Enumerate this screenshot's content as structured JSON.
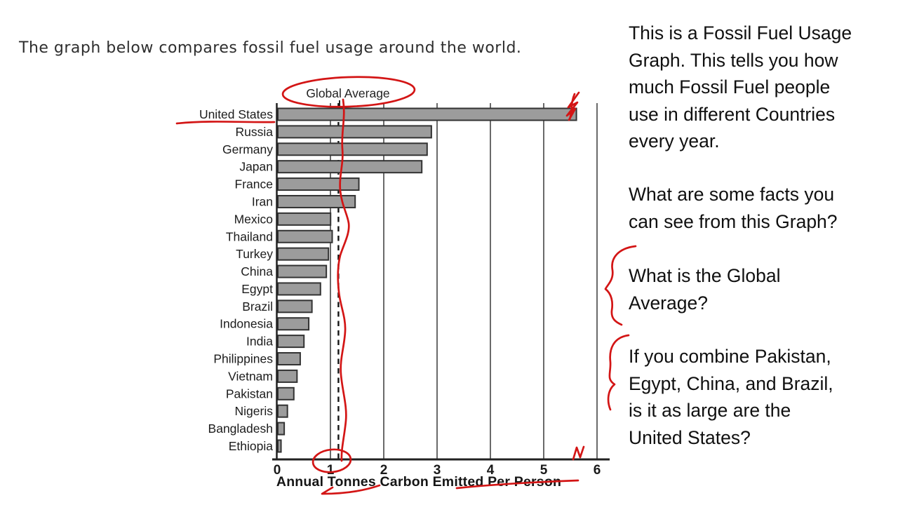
{
  "chart_data": {
    "type": "bar",
    "orientation": "horizontal",
    "title": "The graph below compares fossil fuel usage around the world.",
    "xlabel": "Annual Tonnes Carbon Emitted Per Person",
    "xlim": [
      0,
      6
    ],
    "xticks": [
      0,
      1,
      2,
      3,
      4,
      5,
      6
    ],
    "grid": true,
    "legend": "none",
    "bar_color": "#9c9c9c",
    "bar_border_color": "#333333",
    "categories": [
      "United States",
      "Russia",
      "Germany",
      "Japan",
      "France",
      "Iran",
      "Mexico",
      "Thailand",
      "Turkey",
      "China",
      "Egypt",
      "Brazil",
      "Indonesia",
      "India",
      "Philippines",
      "Vietnam",
      "Pakistan",
      "Nigeris",
      "Bangladesh",
      "Ethiopia"
    ],
    "values": [
      5.6,
      2.88,
      2.8,
      2.7,
      1.52,
      1.45,
      0.99,
      1.02,
      0.95,
      0.91,
      0.8,
      0.64,
      0.58,
      0.49,
      0.42,
      0.36,
      0.3,
      0.18,
      0.12,
      0.06
    ],
    "reference_line": {
      "label": "Global Average",
      "value": 1.15,
      "style": "dashed"
    }
  },
  "annotations": {
    "ink_color": "#d31515",
    "items": [
      "ellipse circling the 'Global Average' label",
      "wavy red line traced down the chart near the average",
      "red underline beneath 'United States'",
      "red scribble at the end of the United States bar",
      "red circle around the x-axis tick '1'",
      "red arrow swoosh under 'Tonnes'",
      "red underline beneath 'Emitted Per Person'",
      "small red 'N' mark near the 6 tick",
      "curly brace beside the Global Average question",
      "curly brace beside the combine-countries question"
    ]
  },
  "notes": {
    "p1": {
      "lines": [
        "This is a Fossil Fuel Usage",
        "Graph. This tells you how",
        "much Fossil Fuel people",
        "use in different Countries",
        "every year."
      ]
    },
    "p2": {
      "lines": [
        "What are some facts you",
        "can see from this Graph?"
      ]
    },
    "p3": {
      "lines": [
        "What is the Global",
        "Average?"
      ]
    },
    "p4": {
      "lines": [
        "If you combine Pakistan,",
        "Egypt, China, and Brazil,",
        "is it as large are the",
        "United States?"
      ]
    }
  }
}
